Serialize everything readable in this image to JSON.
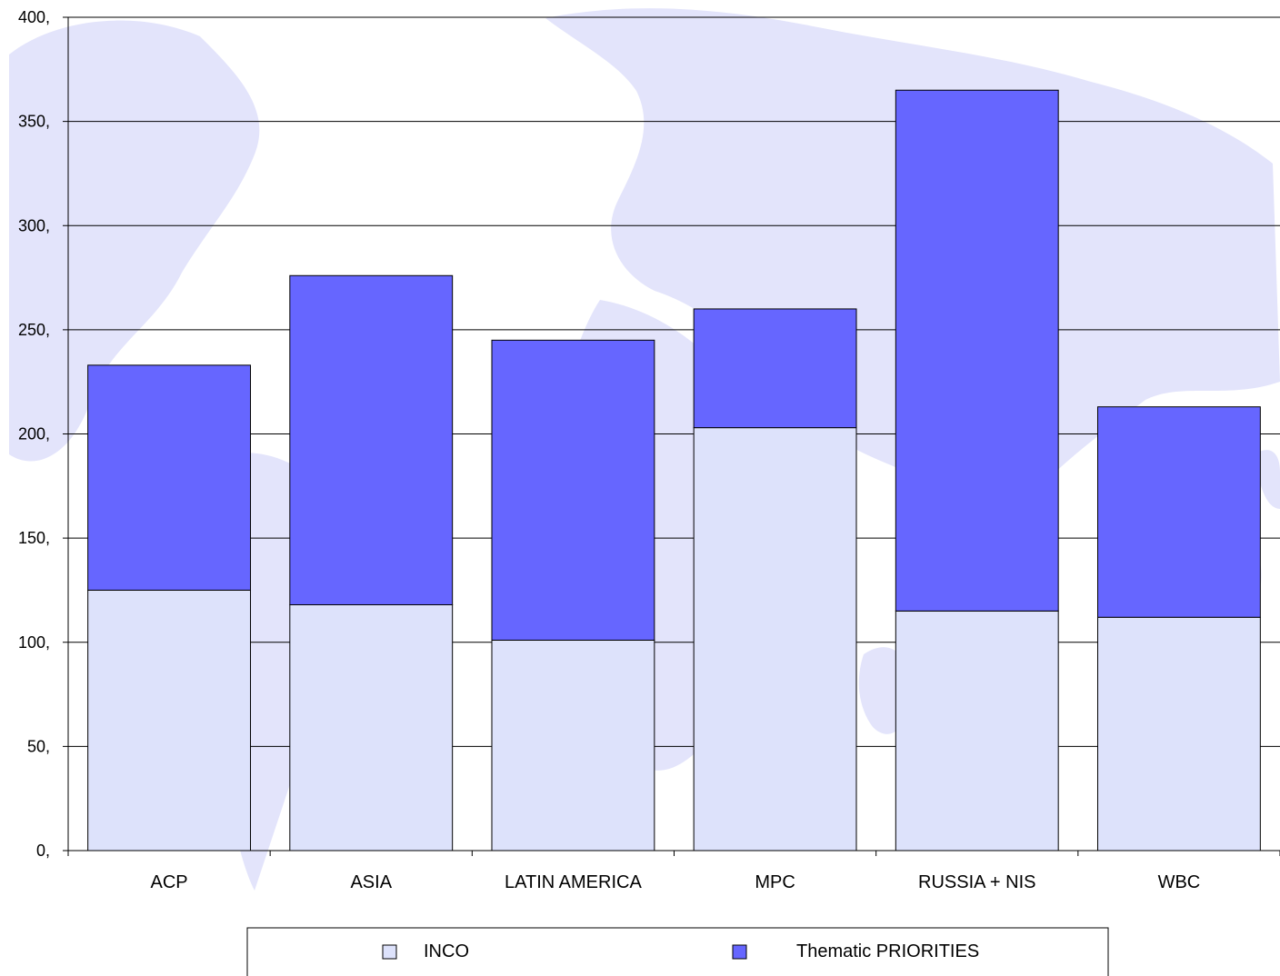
{
  "chart_data": {
    "type": "bar",
    "stacked": true,
    "categories": [
      "ACP",
      "ASIA",
      "LATIN AMERICA",
      "MPC",
      "RUSSIA + NIS",
      "WBC"
    ],
    "series": [
      {
        "name": "INCO",
        "values": [
          125,
          118,
          101,
          203,
          115,
          112
        ],
        "color": "#dde2fb"
      },
      {
        "name": "Thematic PRIORITIES",
        "values": [
          108,
          158,
          144,
          57,
          250,
          101
        ],
        "color": "#6666ff"
      }
    ],
    "ylim": [
      0,
      400
    ],
    "yticks": [
      0,
      50,
      100,
      150,
      200,
      250,
      300,
      350,
      400
    ],
    "ytick_labels": [
      "0,",
      "50,",
      "100,",
      "150,",
      "200,",
      "250,",
      "300,",
      "350,",
      "400,"
    ],
    "grid": true,
    "legend_position": "bottom",
    "background": "world-map"
  }
}
